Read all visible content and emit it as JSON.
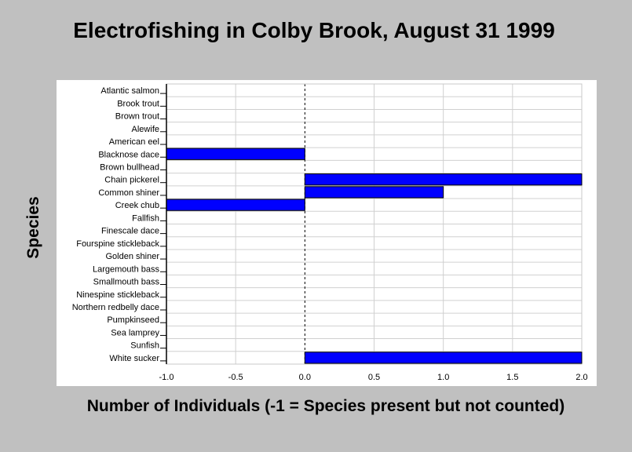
{
  "chart_data": {
    "type": "bar",
    "orientation": "horizontal",
    "title": "Electrofishing in Colby Brook, August 31 1999",
    "xlabel": "Number of Individuals (-1 = Species present but not counted)",
    "ylabel": "Species",
    "categories": [
      "Atlantic salmon",
      "Brook trout",
      "Brown trout",
      "Alewife",
      "American eel",
      "Blacknose dace",
      "Brown bullhead",
      "Chain pickerel",
      "Common shiner",
      "Creek chub",
      "Fallfish",
      "Finescale dace",
      "Fourspine stickleback",
      "Golden shiner",
      "Largemouth bass",
      "Smallmouth bass",
      "Ninespine stickleback",
      "Northern redbelly dace",
      "Pumpkinseed",
      "Sea lamprey",
      "Sunfish",
      "White sucker"
    ],
    "values": [
      0,
      0,
      0,
      0,
      0,
      -1,
      0,
      2,
      1,
      -1,
      0,
      0,
      0,
      0,
      0,
      0,
      0,
      0,
      0,
      0,
      0,
      2
    ],
    "xlim": [
      -1.0,
      2.0
    ],
    "xticks": [
      "-1.0",
      "-0.5",
      "0.0",
      "0.5",
      "1.0",
      "1.5",
      "2.0"
    ],
    "grid": true,
    "bar_color": "#0000ff",
    "zero_line": "dashed"
  }
}
